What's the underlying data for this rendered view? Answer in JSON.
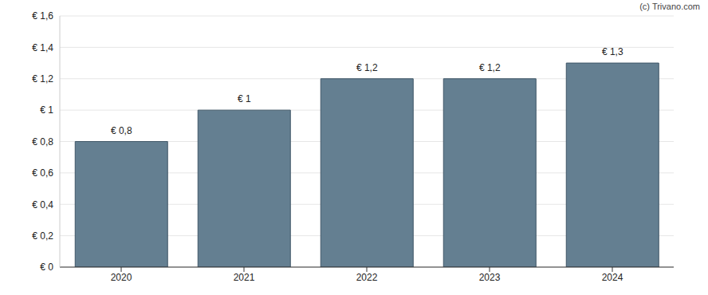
{
  "chart_data": {
    "type": "bar",
    "annotation": "(c) Trivano.com",
    "categories": [
      "2020",
      "2021",
      "2022",
      "2023",
      "2024"
    ],
    "values": [
      0.8,
      1,
      1.2,
      1.2,
      1.3
    ],
    "value_labels": [
      "€ 0,8",
      "€ 1",
      "€ 1,2",
      "€ 1,2",
      "€ 1,3"
    ],
    "data_labels": true,
    "color": "#647f91",
    "ylim": [
      0,
      1.6
    ],
    "yticks": [
      {
        "value": 0,
        "label": "€ 0"
      },
      {
        "value": 0.2,
        "label": "€ 0,2"
      },
      {
        "value": 0.4,
        "label": "€ 0,4"
      },
      {
        "value": 0.6,
        "label": "€ 0,6"
      },
      {
        "value": 0.8,
        "label": "€ 0,8"
      },
      {
        "value": 1,
        "label": "€ 1"
      },
      {
        "value": 1.2,
        "label": "€ 1,2"
      },
      {
        "value": 1.4,
        "label": "€ 1,4"
      },
      {
        "value": 1.6,
        "label": "€ 1,6"
      }
    ],
    "grid": true
  }
}
